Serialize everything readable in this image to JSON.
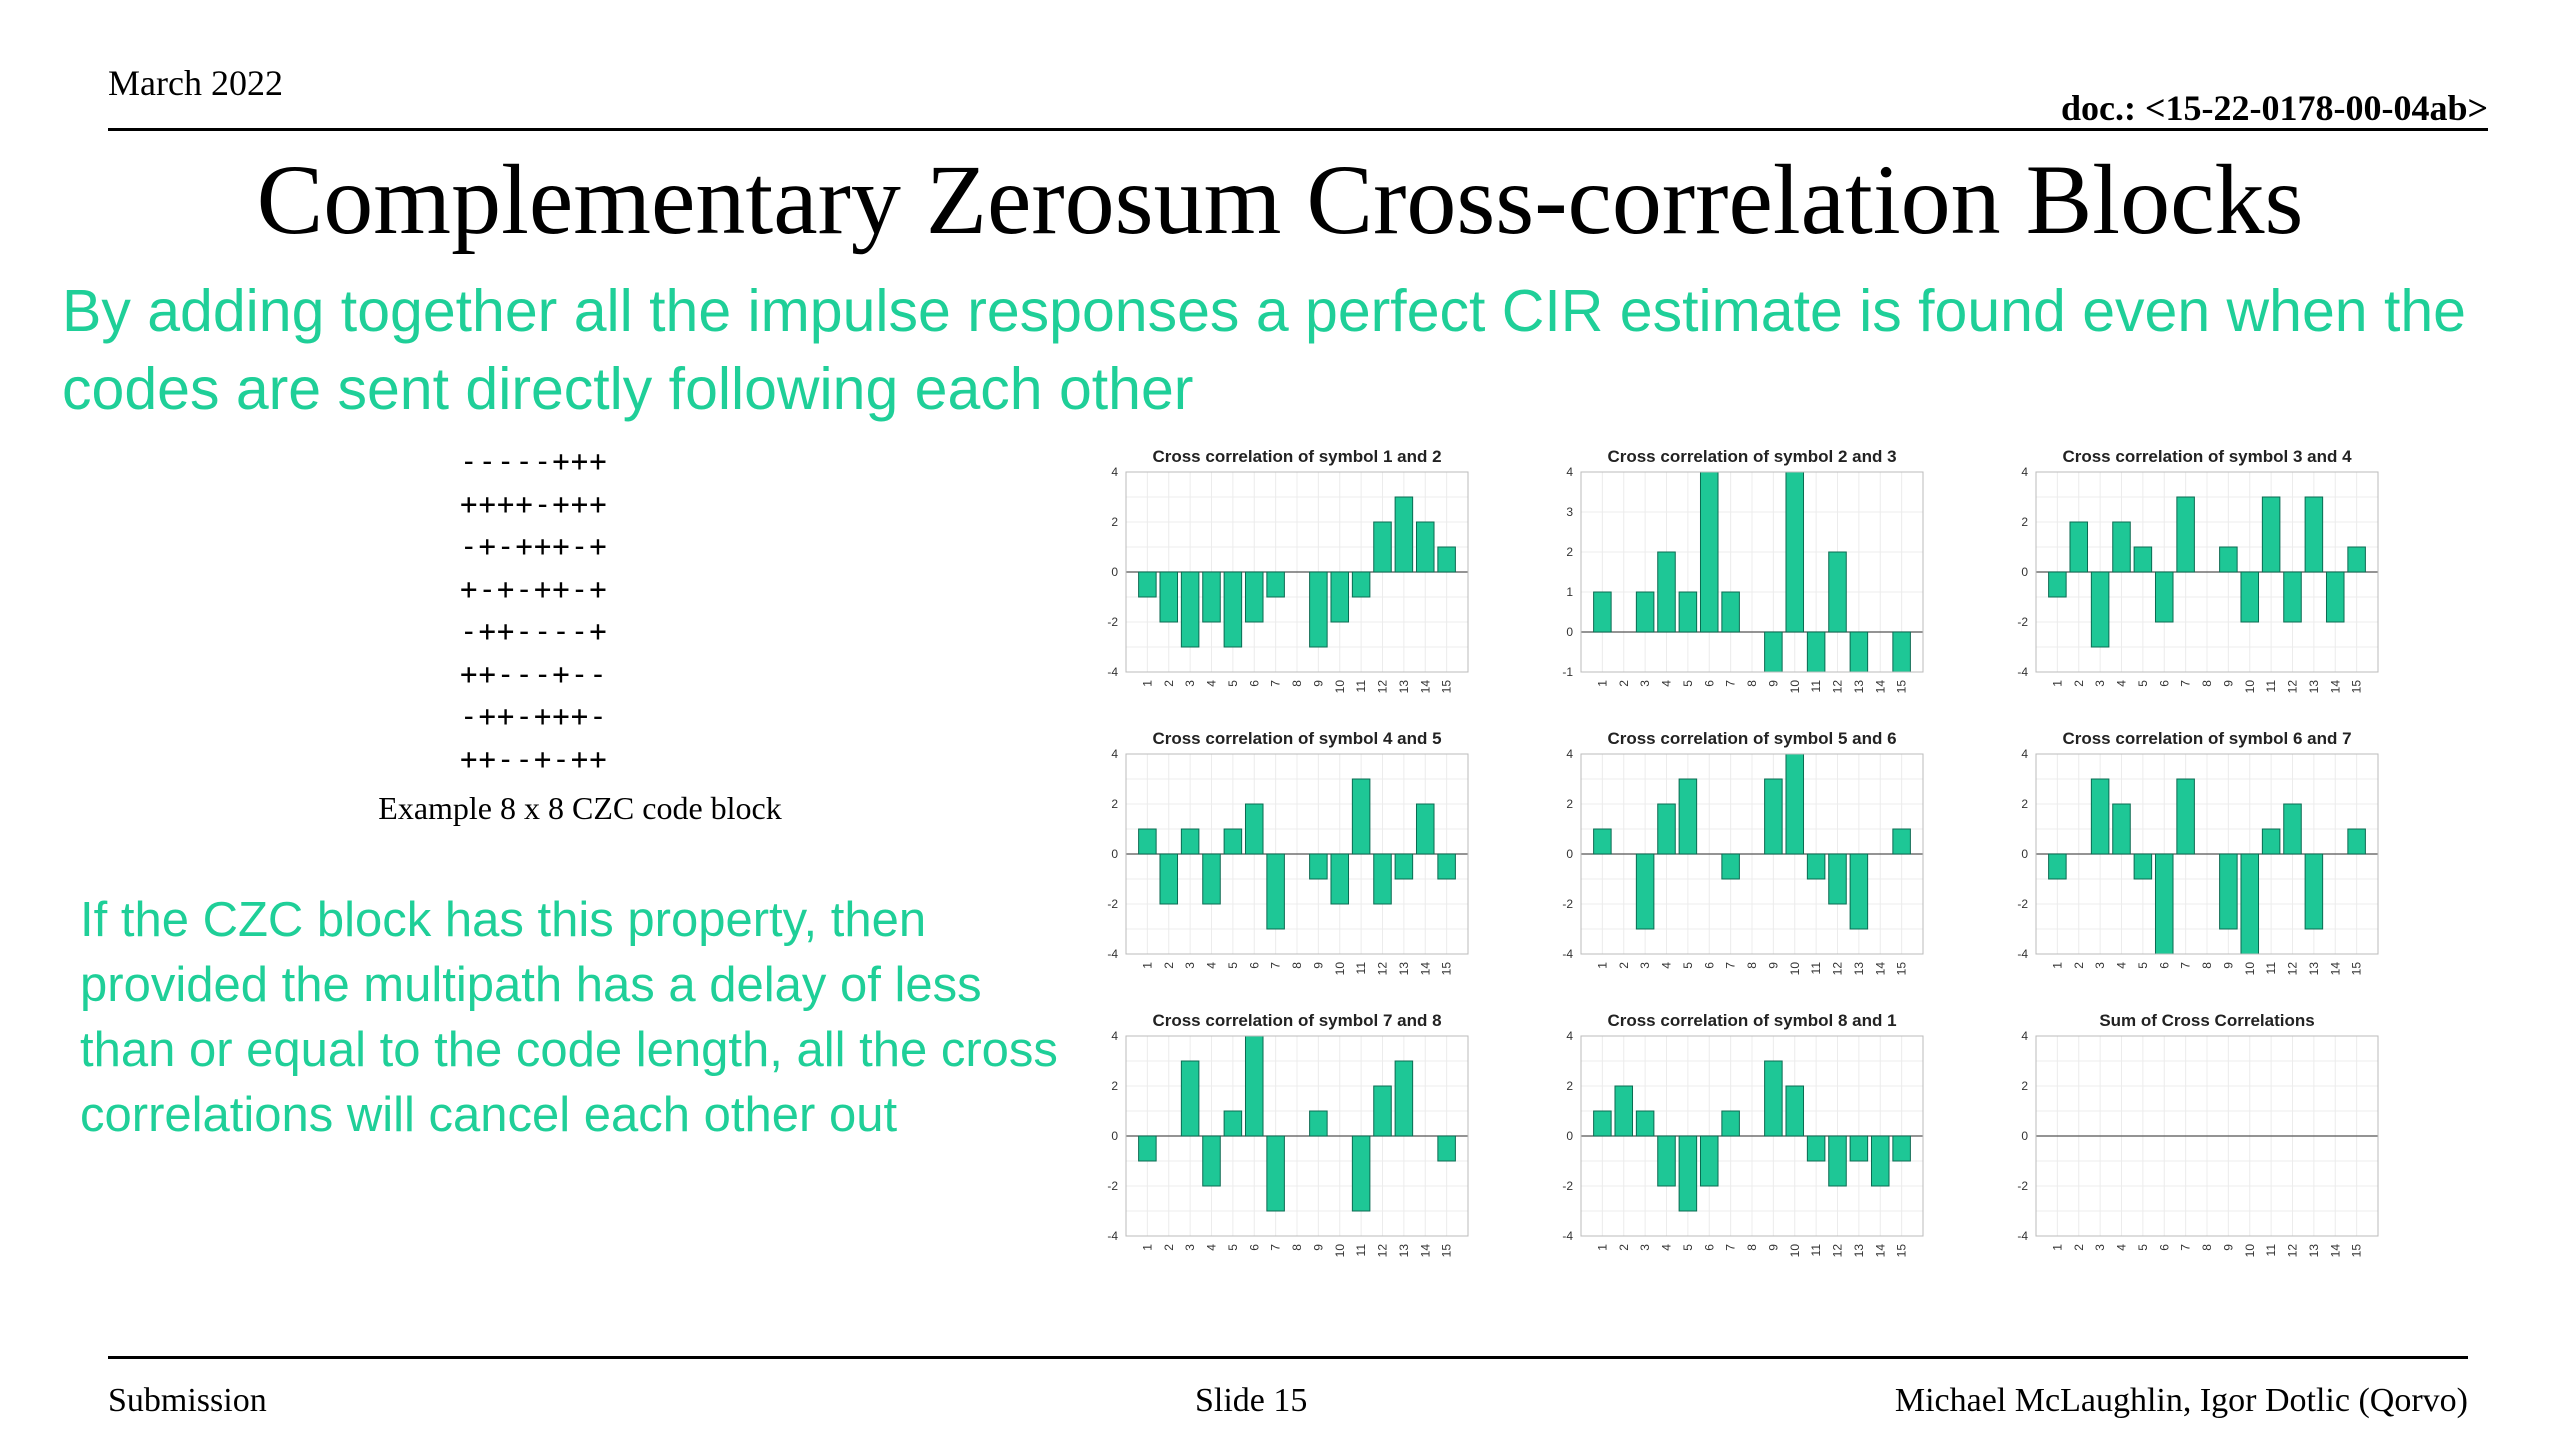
{
  "header": {
    "date": "March 2022",
    "doc": "doc.: <15-22-0178-00-04ab>"
  },
  "title": "Complementary Zerosum Cross-correlation Blocks",
  "subtitle": "By adding together all the impulse responses a perfect CIR estimate is found even when the codes are sent directly following each other",
  "code_block": {
    "rows": [
      "-----+++",
      "++++-+++",
      "-+-+++-+",
      "+-+-++-+",
      "-++----+",
      "++---+--",
      "-++-+++-",
      "++--+-++"
    ],
    "caption": "Example 8 x 8 CZC code block"
  },
  "paragraph": "If the CZC block has this property, then provided the multipath has a delay of less than or equal to the code length, all the cross correlations will cancel each other out",
  "colors": {
    "accent": "#1fcf98",
    "bar": "#1ec796"
  },
  "chart_data": [
    {
      "type": "bar",
      "title": "Cross correlation of symbol 1 and 2",
      "categories": [
        "1",
        "2",
        "3",
        "4",
        "5",
        "6",
        "7",
        "8",
        "9",
        "10",
        "11",
        "12",
        "13",
        "14",
        "15"
      ],
      "values": [
        -1,
        -2,
        -3,
        -2,
        -3,
        -2,
        -1,
        0,
        -3,
        -2,
        -1,
        2,
        3,
        2,
        1
      ],
      "ylim": [
        -4,
        4
      ],
      "yticks": [
        -4,
        -2,
        0,
        2,
        4
      ],
      "grid": true
    },
    {
      "type": "bar",
      "title": "Cross correlation of symbol 2 and 3",
      "categories": [
        "1",
        "2",
        "3",
        "4",
        "5",
        "6",
        "7",
        "8",
        "9",
        "10",
        "11",
        "12",
        "13",
        "14",
        "15"
      ],
      "values": [
        1,
        0,
        1,
        2,
        1,
        4,
        1,
        0,
        -1,
        4,
        -1,
        2,
        -1,
        0,
        -1
      ],
      "ylim": [
        -1,
        4
      ],
      "yticks": [
        -1,
        0,
        1,
        2,
        3,
        4
      ],
      "grid": true
    },
    {
      "type": "bar",
      "title": "Cross correlation of symbol 3 and 4",
      "categories": [
        "1",
        "2",
        "3",
        "4",
        "5",
        "6",
        "7",
        "8",
        "9",
        "10",
        "11",
        "12",
        "13",
        "14",
        "15"
      ],
      "values": [
        -1,
        2,
        -3,
        2,
        1,
        -2,
        3,
        0,
        1,
        -2,
        3,
        -2,
        3,
        -2,
        1
      ],
      "ylim": [
        -4,
        4
      ],
      "yticks": [
        -4,
        -2,
        0,
        2,
        4
      ],
      "grid": true
    },
    {
      "type": "bar",
      "title": "Cross correlation of symbol 4 and 5",
      "categories": [
        "1",
        "2",
        "3",
        "4",
        "5",
        "6",
        "7",
        "8",
        "9",
        "10",
        "11",
        "12",
        "13",
        "14",
        "15"
      ],
      "values": [
        1,
        -2,
        1,
        -2,
        1,
        2,
        -3,
        0,
        -1,
        -2,
        3,
        -2,
        -1,
        2,
        -1
      ],
      "ylim": [
        -4,
        4
      ],
      "yticks": [
        -4,
        -2,
        0,
        2,
        4
      ],
      "grid": true
    },
    {
      "type": "bar",
      "title": "Cross correlation of symbol 5 and 6",
      "categories": [
        "1",
        "2",
        "3",
        "4",
        "5",
        "6",
        "7",
        "8",
        "9",
        "10",
        "11",
        "12",
        "13",
        "14",
        "15"
      ],
      "values": [
        1,
        0,
        -3,
        2,
        3,
        0,
        -1,
        0,
        3,
        4,
        -1,
        -2,
        -3,
        0,
        1
      ],
      "ylim": [
        -4,
        4
      ],
      "yticks": [
        -4,
        -2,
        0,
        2,
        4
      ],
      "grid": true
    },
    {
      "type": "bar",
      "title": "Cross correlation of symbol 6 and 7",
      "categories": [
        "1",
        "2",
        "3",
        "4",
        "5",
        "6",
        "7",
        "8",
        "9",
        "10",
        "11",
        "12",
        "13",
        "14",
        "15"
      ],
      "values": [
        -1,
        0,
        3,
        2,
        -1,
        -4,
        3,
        0,
        -3,
        -4,
        1,
        2,
        -3,
        0,
        1
      ],
      "ylim": [
        -4,
        4
      ],
      "yticks": [
        -4,
        -2,
        0,
        2,
        4
      ],
      "grid": true
    },
    {
      "type": "bar",
      "title": "Cross correlation of symbol 7 and 8",
      "categories": [
        "1",
        "2",
        "3",
        "4",
        "5",
        "6",
        "7",
        "8",
        "9",
        "10",
        "11",
        "12",
        "13",
        "14",
        "15"
      ],
      "values": [
        -1,
        0,
        3,
        -2,
        1,
        4,
        -3,
        0,
        1,
        0,
        -3,
        2,
        3,
        0,
        -1
      ],
      "ylim": [
        -4,
        4
      ],
      "yticks": [
        -4,
        -2,
        0,
        2,
        4
      ],
      "grid": true
    },
    {
      "type": "bar",
      "title": "Cross correlation of symbol 8 and 1",
      "categories": [
        "1",
        "2",
        "3",
        "4",
        "5",
        "6",
        "7",
        "8",
        "9",
        "10",
        "11",
        "12",
        "13",
        "14",
        "15"
      ],
      "values": [
        1,
        2,
        1,
        -2,
        -3,
        -2,
        1,
        0,
        3,
        2,
        -1,
        -2,
        -1,
        -2,
        -1
      ],
      "ylim": [
        -4,
        4
      ],
      "yticks": [
        -4,
        -2,
        0,
        2,
        4
      ],
      "grid": true
    },
    {
      "type": "bar",
      "title": "Sum of Cross Correlations",
      "categories": [
        "1",
        "2",
        "3",
        "4",
        "5",
        "6",
        "7",
        "8",
        "9",
        "10",
        "11",
        "12",
        "13",
        "14",
        "15"
      ],
      "values": [
        0,
        0,
        0,
        0,
        0,
        0,
        0,
        0,
        0,
        0,
        0,
        0,
        0,
        0,
        0
      ],
      "ylim": [
        -4,
        4
      ],
      "yticks": [
        -4,
        -2,
        0,
        2,
        4
      ],
      "grid": true
    }
  ],
  "footer": {
    "left": "Submission",
    "center": "Slide 15",
    "right": "Michael McLaughlin, Igor Dotlic (Qorvo)"
  }
}
